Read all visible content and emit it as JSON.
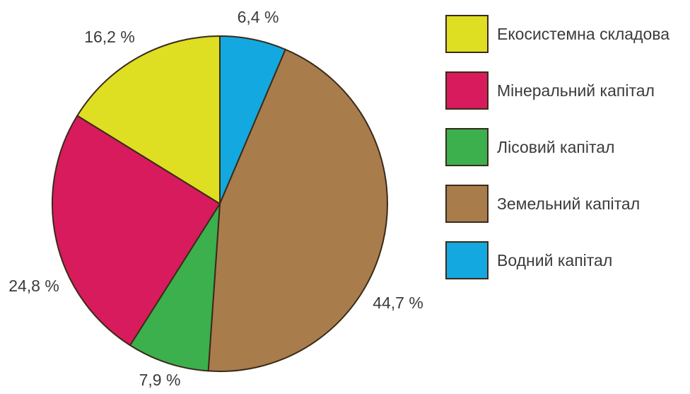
{
  "chart_data": {
    "type": "pie",
    "title": "",
    "slices": [
      {
        "label": "Водний капітал",
        "value": 6.4,
        "value_label": "6,4 %",
        "color": "#14a8e0"
      },
      {
        "label": "Земельний капітал",
        "value": 44.7,
        "value_label": "44,7 %",
        "color": "#a97c4c"
      },
      {
        "label": "Лісовий капітал",
        "value": 7.9,
        "value_label": "7,9 %",
        "color": "#3bb04d"
      },
      {
        "label": "Мінеральний капітал",
        "value": 24.8,
        "value_label": "24,8 %",
        "color": "#d71b5c"
      },
      {
        "label": "Екосистемна складова",
        "value": 16.2,
        "value_label": "16,2 %",
        "color": "#dede23"
      }
    ],
    "legend": {
      "position": "right",
      "entries": [
        "Екосистемна складова",
        "Мінеральний капітал",
        "Лісовий капітал",
        "Земельний капітал",
        "Водний капітал"
      ]
    },
    "start": "top",
    "direction": "clockwise"
  }
}
